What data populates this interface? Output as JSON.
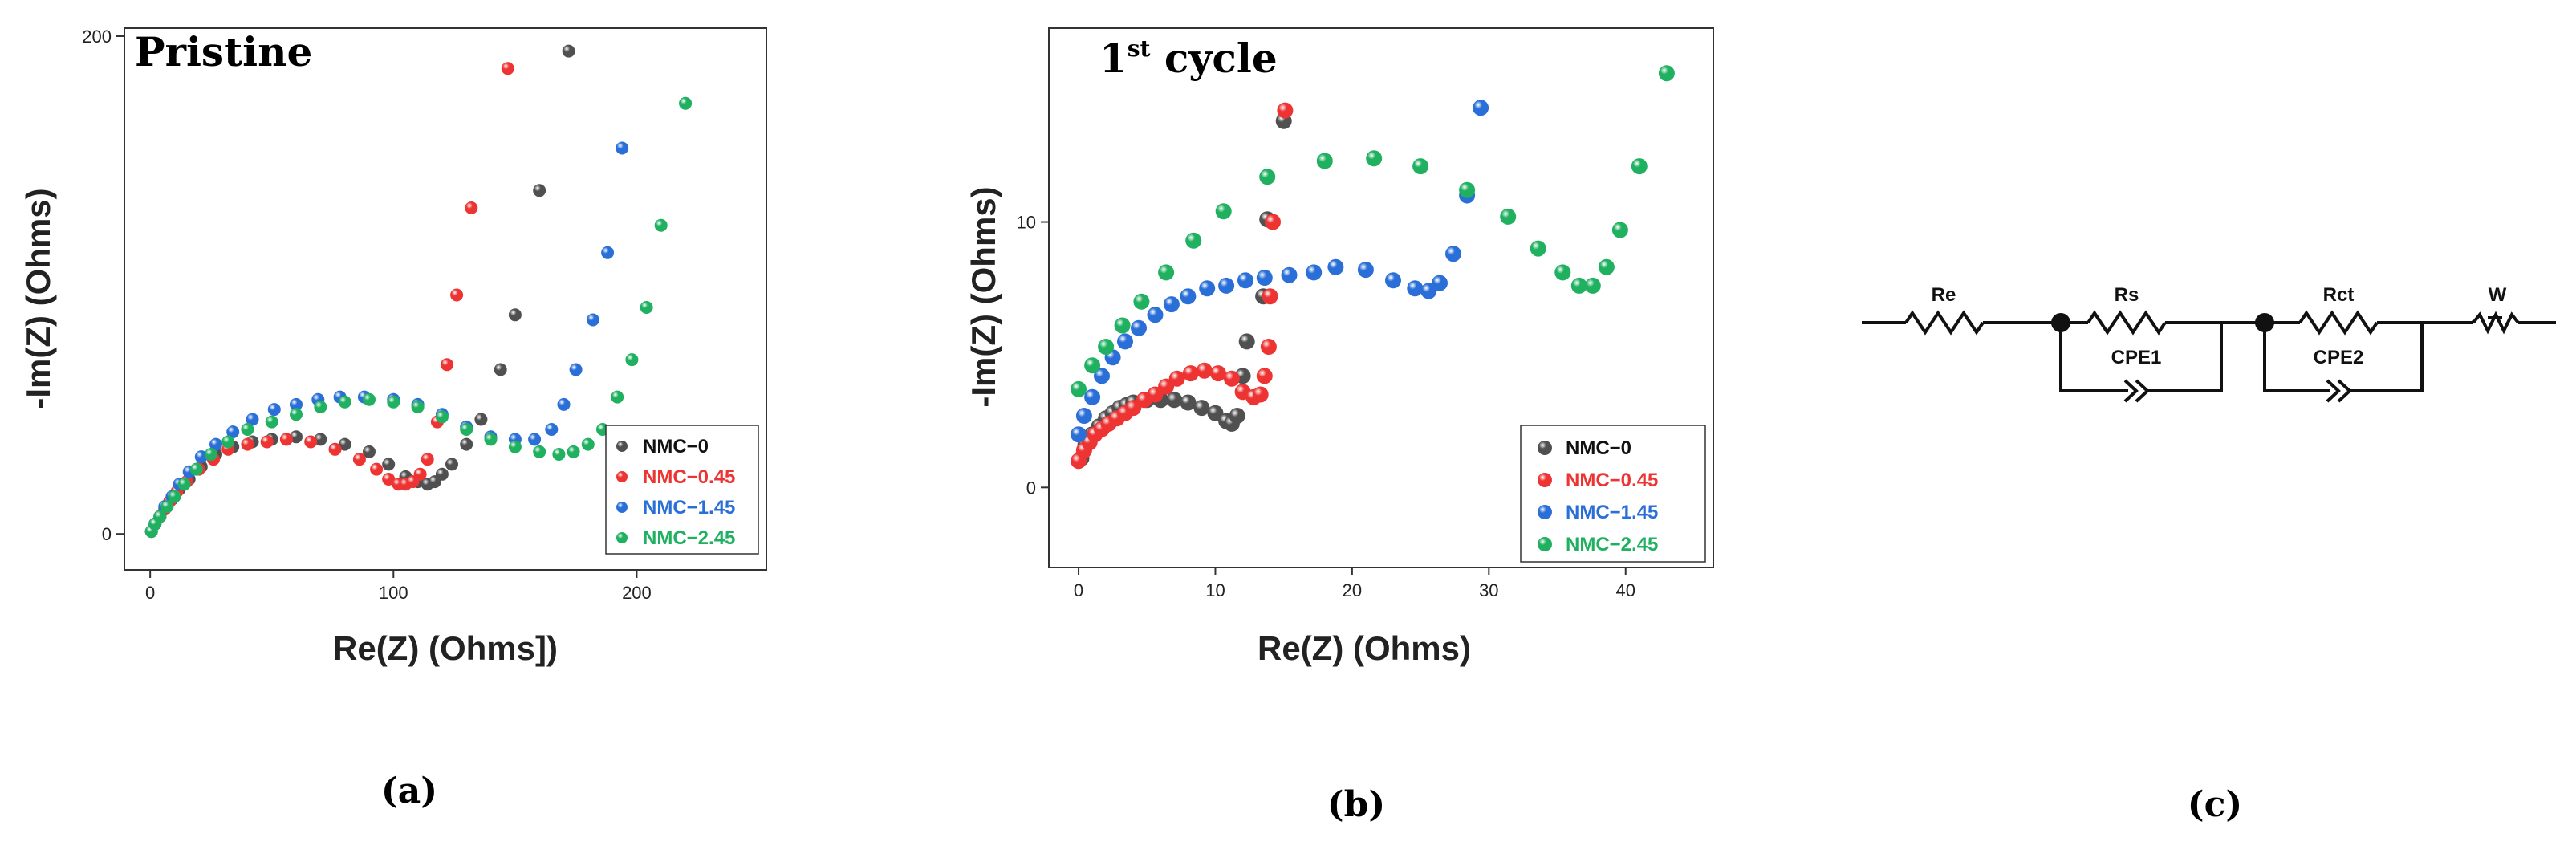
{
  "colors": {
    "NMC-0": "#505050",
    "NMC-0.45": "#ee3333",
    "NMC-1.45": "#2a6fd8",
    "NMC-2.45": "#1fb060"
  },
  "panels": {
    "a": {
      "caption": "(a)"
    },
    "b": {
      "caption": "(b)"
    },
    "c": {
      "caption": "(c)"
    }
  },
  "chart_data": [
    {
      "id": "a",
      "type": "scatter",
      "title": "Pristine",
      "xlabel": "Re(Z) (Ohms])",
      "ylabel": "-Im(Z) (Ohms)",
      "xlim": [
        -5,
        250
      ],
      "ylim": [
        -8,
        200
      ],
      "xticks": [
        0,
        100,
        200
      ],
      "yticks": [
        0,
        200
      ],
      "legend": [
        "NMC−0",
        "NMC−0.45",
        "NMC−1.45",
        "NMC−2.45"
      ],
      "legend_position": "bottom-right",
      "series": [
        {
          "name": "NMC-0",
          "points": [
            [
              0.5,
              1
            ],
            [
              2,
              4
            ],
            [
              4,
              7
            ],
            [
              6,
              10
            ],
            [
              9,
              14
            ],
            [
              12,
              18
            ],
            [
              16,
              22
            ],
            [
              21,
              27
            ],
            [
              27,
              32
            ],
            [
              34,
              35
            ],
            [
              42,
              37
            ],
            [
              50,
              38
            ],
            [
              60,
              39
            ],
            [
              70,
              38
            ],
            [
              80,
              36
            ],
            [
              90,
              33
            ],
            [
              98,
              28
            ],
            [
              105,
              23
            ],
            [
              110,
              21
            ],
            [
              114,
              20
            ],
            [
              117,
              21
            ],
            [
              120,
              24
            ],
            [
              124,
              28
            ],
            [
              130,
              36
            ],
            [
              136,
              46
            ],
            [
              144,
              66
            ],
            [
              150,
              88
            ],
            [
              160,
              138
            ],
            [
              172,
              194
            ]
          ]
        },
        {
          "name": "NMC-0.45",
          "points": [
            [
              0.5,
              1
            ],
            [
              2,
              4
            ],
            [
              4,
              7
            ],
            [
              6,
              10
            ],
            [
              8,
              13
            ],
            [
              11,
              17
            ],
            [
              15,
              21
            ],
            [
              20,
              26
            ],
            [
              26,
              30
            ],
            [
              32,
              34
            ],
            [
              40,
              36
            ],
            [
              48,
              37
            ],
            [
              56,
              38
            ],
            [
              66,
              37
            ],
            [
              76,
              34
            ],
            [
              86,
              30
            ],
            [
              93,
              26
            ],
            [
              98,
              22
            ],
            [
              102,
              20
            ],
            [
              105,
              20
            ],
            [
              108,
              21
            ],
            [
              111,
              24
            ],
            [
              114,
              30
            ],
            [
              118,
              45
            ],
            [
              122,
              68
            ],
            [
              126,
              96
            ],
            [
              132,
              131
            ],
            [
              147,
              187
            ]
          ]
        },
        {
          "name": "NMC-1.45",
          "points": [
            [
              0.5,
              1
            ],
            [
              2,
              4
            ],
            [
              4,
              7
            ],
            [
              6,
              11
            ],
            [
              9,
              15
            ],
            [
              12,
              20
            ],
            [
              16,
              25
            ],
            [
              21,
              31
            ],
            [
              27,
              36
            ],
            [
              34,
              41
            ],
            [
              42,
              46
            ],
            [
              51,
              50
            ],
            [
              60,
              52
            ],
            [
              69,
              54
            ],
            [
              78,
              55
            ],
            [
              88,
              55
            ],
            [
              100,
              54
            ],
            [
              110,
              52
            ],
            [
              120,
              48
            ],
            [
              130,
              43
            ],
            [
              140,
              39
            ],
            [
              150,
              38
            ],
            [
              158,
              38
            ],
            [
              165,
              42
            ],
            [
              170,
              52
            ],
            [
              175,
              66
            ],
            [
              182,
              86
            ],
            [
              188,
              113
            ],
            [
              194,
              155
            ]
          ]
        },
        {
          "name": "NMC-2.45",
          "points": [
            [
              0.5,
              1
            ],
            [
              2,
              4
            ],
            [
              4,
              7
            ],
            [
              7,
              11
            ],
            [
              10,
              15
            ],
            [
              14,
              20
            ],
            [
              19,
              26
            ],
            [
              25,
              32
            ],
            [
              32,
              37
            ],
            [
              40,
              42
            ],
            [
              50,
              45
            ],
            [
              60,
              48
            ],
            [
              70,
              51
            ],
            [
              80,
              53
            ],
            [
              90,
              54
            ],
            [
              100,
              53
            ],
            [
              110,
              51
            ],
            [
              120,
              47
            ],
            [
              130,
              42
            ],
            [
              140,
              38
            ],
            [
              150,
              35
            ],
            [
              160,
              33
            ],
            [
              168,
              32
            ],
            [
              174,
              33
            ],
            [
              180,
              36
            ],
            [
              186,
              42
            ],
            [
              192,
              55
            ],
            [
              198,
              70
            ],
            [
              204,
              91
            ],
            [
              210,
              124
            ],
            [
              220,
              173
            ]
          ]
        }
      ]
    },
    {
      "id": "b",
      "type": "scatter",
      "title": "1st cycle",
      "title_main": "1",
      "title_sup": "st",
      "title_rest": " cycle",
      "xlabel": "Re(Z) (Ohms)",
      "ylabel": "-Im(Z) (Ohms)",
      "xlim": [
        -1,
        46
      ],
      "ylim": [
        -2.5,
        17
      ],
      "xticks": [
        0,
        10,
        20,
        30,
        40
      ],
      "yticks": [
        0,
        10
      ],
      "legend": [
        "NMC−0",
        "NMC−0.45",
        "NMC−1.45",
        "NMC−2.45"
      ],
      "legend_position": "bottom-right",
      "series": [
        {
          "name": "NMC-0",
          "points": [
            [
              0.2,
              1.1
            ],
            [
              0.5,
              1.6
            ],
            [
              1,
              2.0
            ],
            [
              1.5,
              2.3
            ],
            [
              2,
              2.6
            ],
            [
              2.5,
              2.8
            ],
            [
              3,
              3.0
            ],
            [
              3.5,
              3.1
            ],
            [
              4,
              3.2
            ],
            [
              5,
              3.3
            ],
            [
              6,
              3.3
            ],
            [
              7,
              3.3
            ],
            [
              8,
              3.2
            ],
            [
              9,
              3.0
            ],
            [
              10,
              2.8
            ],
            [
              10.8,
              2.5
            ],
            [
              11.2,
              2.4
            ],
            [
              11.6,
              2.7
            ],
            [
              12,
              4.2
            ],
            [
              12.3,
              5.5
            ],
            [
              13.5,
              7.2
            ],
            [
              13.8,
              10.1
            ],
            [
              15,
              13.8
            ]
          ]
        },
        {
          "name": "NMC-0.45",
          "points": [
            [
              0,
              1.0
            ],
            [
              0.4,
              1.4
            ],
            [
              0.8,
              1.7
            ],
            [
              1.2,
              2.0
            ],
            [
              1.7,
              2.2
            ],
            [
              2.2,
              2.4
            ],
            [
              2.8,
              2.6
            ],
            [
              3.4,
              2.8
            ],
            [
              4,
              3.0
            ],
            [
              4.8,
              3.3
            ],
            [
              5.6,
              3.5
            ],
            [
              6.4,
              3.8
            ],
            [
              7.2,
              4.1
            ],
            [
              8.2,
              4.3
            ],
            [
              9.2,
              4.4
            ],
            [
              10.2,
              4.3
            ],
            [
              11.2,
              4.1
            ],
            [
              12,
              3.6
            ],
            [
              12.8,
              3.4
            ],
            [
              13.3,
              3.5
            ],
            [
              13.6,
              4.2
            ],
            [
              13.9,
              5.3
            ],
            [
              14,
              7.2
            ],
            [
              14.2,
              10.0
            ],
            [
              15.1,
              14.2
            ]
          ]
        },
        {
          "name": "NMC-1.45",
          "points": [
            [
              0,
              2.0
            ],
            [
              0.4,
              2.7
            ],
            [
              1,
              3.4
            ],
            [
              1.7,
              4.2
            ],
            [
              2.5,
              4.9
            ],
            [
              3.4,
              5.5
            ],
            [
              4.4,
              6.0
            ],
            [
              5.6,
              6.5
            ],
            [
              6.8,
              6.9
            ],
            [
              8,
              7.2
            ],
            [
              9.4,
              7.5
            ],
            [
              10.8,
              7.6
            ],
            [
              12.2,
              7.8
            ],
            [
              13.6,
              7.9
            ],
            [
              15.4,
              8.0
            ],
            [
              17.2,
              8.1
            ],
            [
              18.8,
              8.3
            ],
            [
              21,
              8.2
            ],
            [
              23,
              7.8
            ],
            [
              24.6,
              7.5
            ],
            [
              25.6,
              7.4
            ],
            [
              26.4,
              7.7
            ],
            [
              27.4,
              8.8
            ],
            [
              28.4,
              11.0
            ],
            [
              29.4,
              14.3
            ]
          ]
        },
        {
          "name": "NMC-2.45",
          "points": [
            [
              0,
              3.7
            ],
            [
              1,
              4.6
            ],
            [
              2,
              5.3
            ],
            [
              3.2,
              6.1
            ],
            [
              4.6,
              7.0
            ],
            [
              6.4,
              8.1
            ],
            [
              8.4,
              9.3
            ],
            [
              10.6,
              10.4
            ],
            [
              13.8,
              11.7
            ],
            [
              18,
              12.3
            ],
            [
              21.6,
              12.4
            ],
            [
              25,
              12.1
            ],
            [
              28.4,
              11.2
            ],
            [
              31.4,
              10.2
            ],
            [
              33.6,
              9.0
            ],
            [
              35.4,
              8.1
            ],
            [
              36.6,
              7.6
            ],
            [
              37.6,
              7.6
            ],
            [
              38.6,
              8.3
            ],
            [
              39.6,
              9.7
            ],
            [
              41,
              12.1
            ],
            [
              43,
              15.6
            ]
          ]
        }
      ]
    }
  ],
  "circuit": {
    "labels": [
      "Re",
      "Rs",
      "CPE1",
      "Rct",
      "CPE2",
      "W"
    ]
  }
}
